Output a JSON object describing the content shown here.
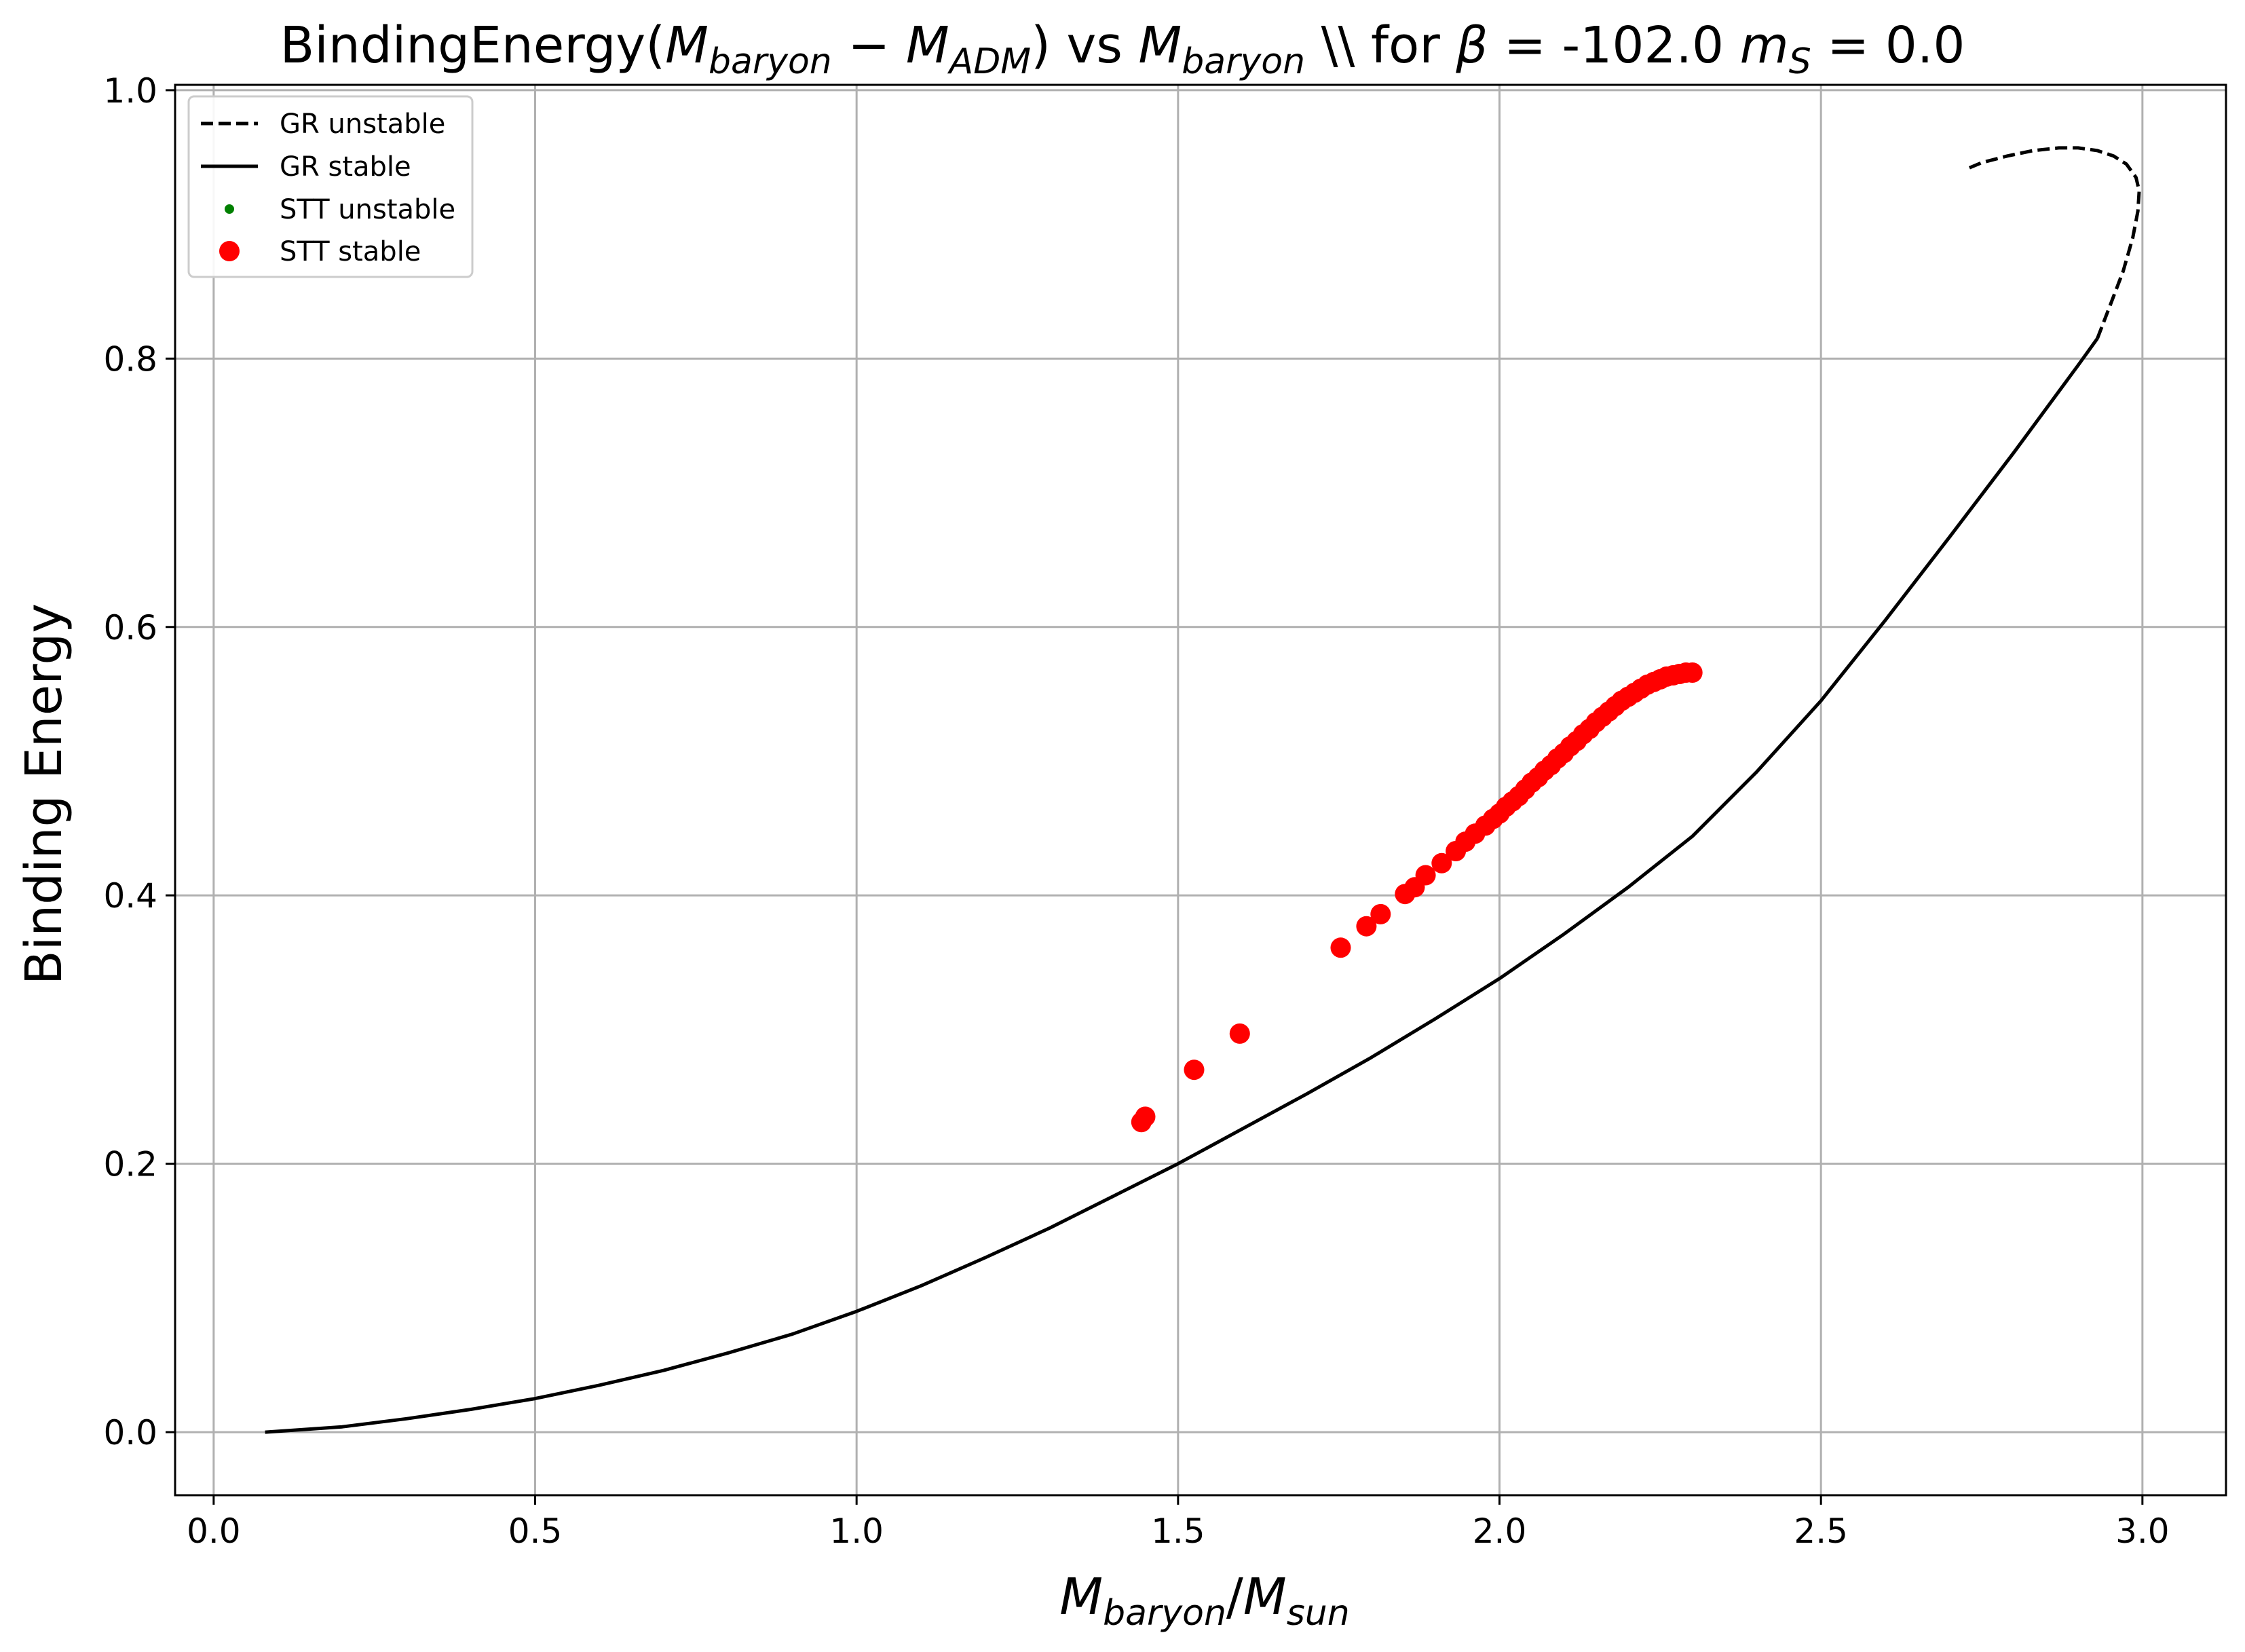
{
  "chart_data": {
    "type": "scatter",
    "title": {
      "prefix": "BindingEnergy(",
      "m_baryon_main": "M",
      "m_baryon_sub": "baryon",
      "minus": " − ",
      "m_adm_main": "M",
      "m_adm_sub": "ADM",
      "middle": ") vs ",
      "m_baryon2_main": "M",
      "m_baryon2_sub": "baryon",
      "for_part": " \\\\ for ",
      "beta_symbol": "β",
      "beta_eq": " = -102.0 ",
      "ms_main": "m",
      "ms_sub": "S",
      "ms_eq": " = 0.0"
    },
    "xlabel": {
      "num_main": "M",
      "num_sub": "baryon",
      "slash": "/",
      "den_main": "M",
      "den_sub": "sun"
    },
    "ylabel": "Binding Energy",
    "xlim": [
      -0.06,
      3.13
    ],
    "ylim": [
      -0.047,
      1.004
    ],
    "xticks": [
      0.0,
      0.5,
      1.0,
      1.5,
      2.0,
      2.5,
      3.0
    ],
    "xtick_labels": [
      "0.0",
      "0.5",
      "1.0",
      "1.5",
      "2.0",
      "2.5",
      "3.0"
    ],
    "yticks": [
      0.0,
      0.2,
      0.4,
      0.6,
      0.8,
      1.0
    ],
    "ytick_labels": [
      "0.0",
      "0.2",
      "0.4",
      "0.6",
      "0.8",
      "1.0"
    ],
    "grid": true,
    "legend_position": "upper-left",
    "colors": {
      "gr": "#000000",
      "stt_unstable": "#008000",
      "stt_stable": "#ff0000",
      "grid": "#b0b0b0"
    },
    "series": [
      {
        "name": "GR unstable",
        "style": "dashed-line",
        "x": [
          2.93,
          2.95,
          2.97,
          2.985,
          2.993,
          2.995,
          2.99,
          2.975,
          2.955,
          2.93,
          2.9,
          2.87,
          2.83,
          2.79,
          2.75,
          2.73
        ],
        "y": [
          0.815,
          0.84,
          0.865,
          0.89,
          0.91,
          0.925,
          0.935,
          0.945,
          0.951,
          0.955,
          0.957,
          0.957,
          0.955,
          0.951,
          0.946,
          0.942
        ]
      },
      {
        "name": "GR stable",
        "style": "solid-line",
        "x": [
          0.08,
          0.2,
          0.3,
          0.4,
          0.5,
          0.6,
          0.7,
          0.8,
          0.9,
          1.0,
          1.1,
          1.2,
          1.3,
          1.4,
          1.5,
          1.6,
          1.7,
          1.8,
          1.9,
          2.0,
          2.1,
          2.2,
          2.3,
          2.4,
          2.5,
          2.6,
          2.7,
          2.8,
          2.9,
          2.93
        ],
        "y": [
          0.0,
          0.004,
          0.01,
          0.017,
          0.025,
          0.035,
          0.046,
          0.059,
          0.073,
          0.09,
          0.109,
          0.13,
          0.152,
          0.176,
          0.2,
          0.226,
          0.252,
          0.279,
          0.308,
          0.338,
          0.371,
          0.406,
          0.444,
          0.492,
          0.545,
          0.605,
          0.667,
          0.73,
          0.795,
          0.815
        ]
      },
      {
        "name": "STT unstable",
        "style": "small-dots",
        "x": [],
        "y": []
      },
      {
        "name": "STT stable",
        "style": "large-dots",
        "x": [
          1.443,
          1.449,
          1.525,
          1.596,
          1.753,
          1.793,
          1.815,
          1.853,
          1.868,
          1.885,
          1.91,
          1.932,
          1.947,
          1.962,
          1.978,
          1.99,
          2.0,
          2.01,
          2.02,
          2.03,
          2.04,
          2.05,
          2.06,
          2.07,
          2.08,
          2.09,
          2.1,
          2.11,
          2.12,
          2.13,
          2.14,
          2.15,
          2.16,
          2.17,
          2.18,
          2.19,
          2.2,
          2.21,
          2.22,
          2.23,
          2.24,
          2.25,
          2.26,
          2.27,
          2.28,
          2.29,
          2.3
        ],
        "y": [
          0.231,
          0.235,
          0.27,
          0.297,
          0.361,
          0.377,
          0.386,
          0.401,
          0.406,
          0.415,
          0.424,
          0.433,
          0.44,
          0.446,
          0.452,
          0.457,
          0.461,
          0.466,
          0.47,
          0.474,
          0.479,
          0.484,
          0.488,
          0.493,
          0.497,
          0.502,
          0.506,
          0.511,
          0.515,
          0.52,
          0.524,
          0.529,
          0.533,
          0.537,
          0.541,
          0.545,
          0.548,
          0.551,
          0.554,
          0.557,
          0.559,
          0.561,
          0.563,
          0.564,
          0.565,
          0.566,
          0.566
        ]
      }
    ]
  }
}
